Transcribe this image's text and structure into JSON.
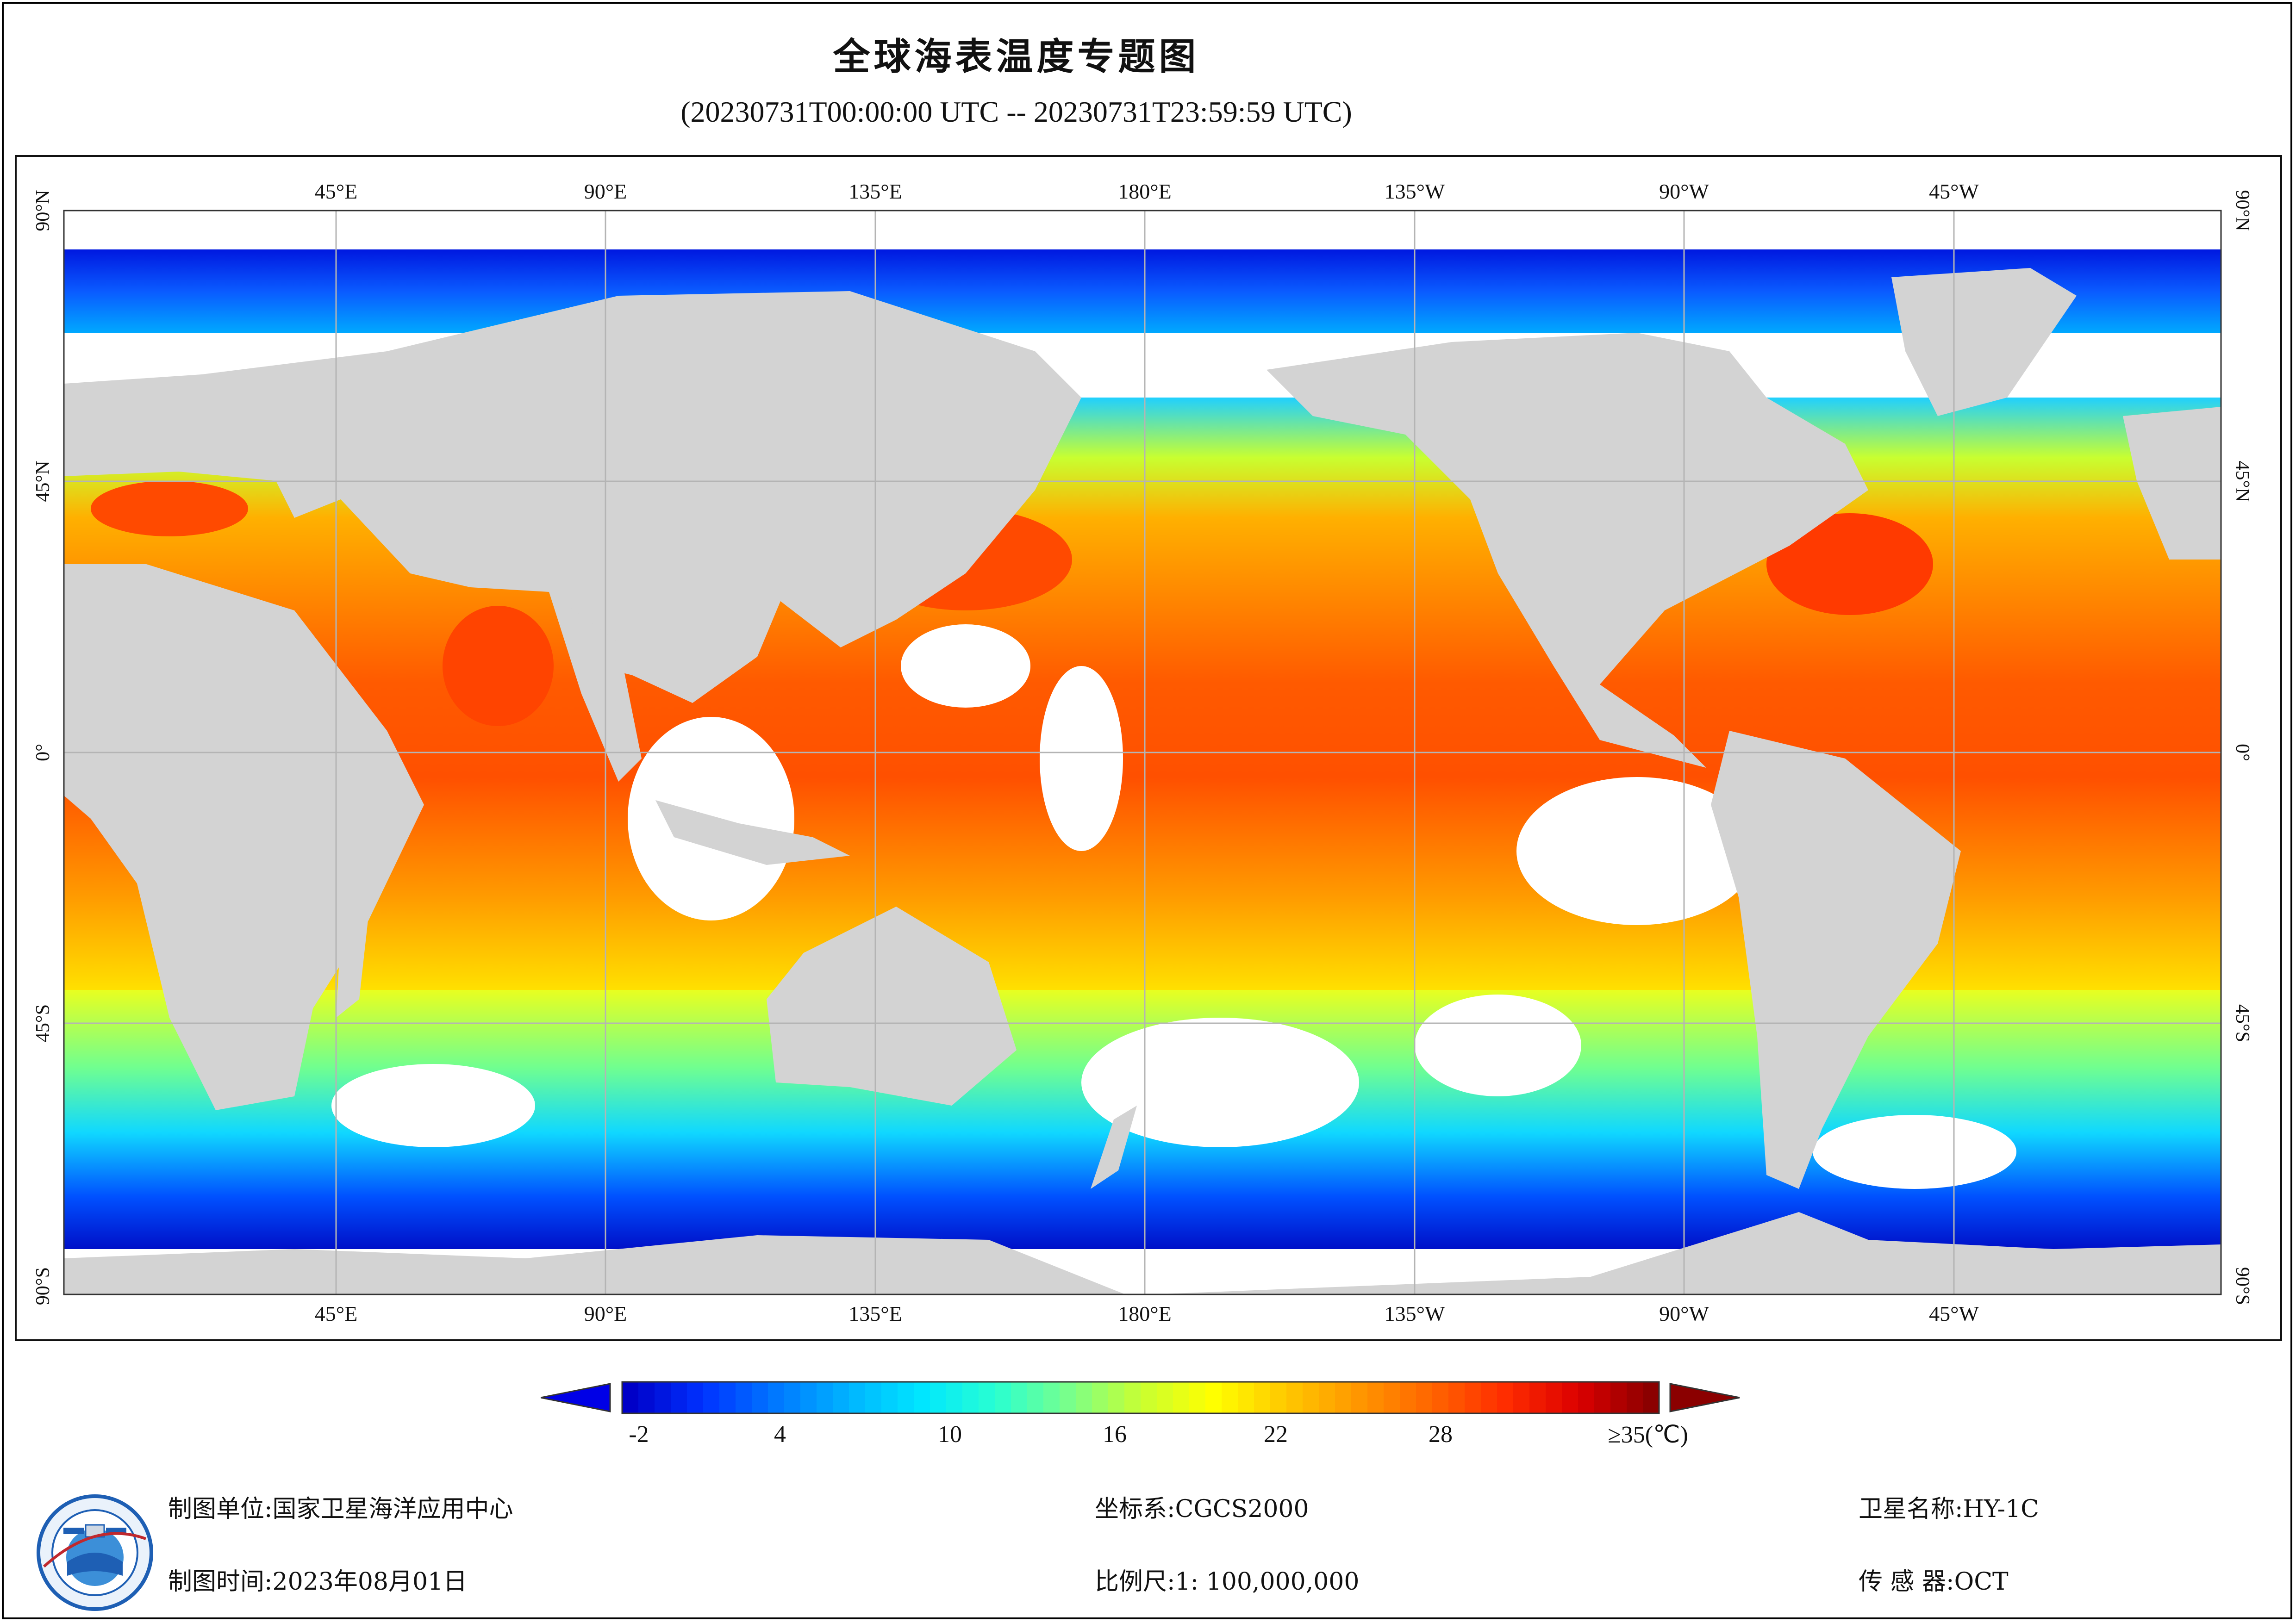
{
  "title": "全球海表温度专题图",
  "subtitle": "(20230731T00:00:00 UTC -- 20230731T23:59:59 UTC)",
  "map": {
    "type": "equirectangular world map, 0° centered on Pacific (180°E at center)",
    "lon_labels": [
      "45°E",
      "90°E",
      "135°E",
      "180°E",
      "135°W",
      "90°W",
      "45°W"
    ],
    "lat_labels_left": [
      "90°N",
      "45°N",
      "0°",
      "45°S",
      "90°S"
    ],
    "lat_labels_right": [
      "90°N",
      "45°N",
      "0°",
      "45°S",
      "90°S"
    ],
    "colors": {
      "land": "#d3d3d3",
      "no_data": "#ffffff",
      "grid": "#b4b4b4"
    }
  },
  "legend": {
    "unit": "≥35(℃)",
    "tick_labels": [
      "-2",
      "4",
      "10",
      "16",
      "22",
      "28"
    ],
    "range": [
      -2,
      35
    ],
    "colors_low_to_high": [
      "#0000c8",
      "#0032ff",
      "#0078ff",
      "#00b4ff",
      "#00e6ff",
      "#28ffd2",
      "#78ff8c",
      "#c8ff32",
      "#ffff00",
      "#ffc800",
      "#ff9600",
      "#ff6400",
      "#ff2d00",
      "#dc0000",
      "#8b0000"
    ]
  },
  "footer": {
    "org_label": "制图单位:",
    "org_value": "国家卫星海洋应用中心",
    "time_label": "制图时间:",
    "time_value": "2023年08月01日",
    "crs_label": "坐标系:",
    "crs_value": "CGCS2000",
    "scale_label": "比例尺:",
    "scale_value": "1: 100,000,000",
    "sat_label": "卫星名称:",
    "sat_value": "HY-1C",
    "sensor_label": "传 感 器:",
    "sensor_value": "OCT"
  }
}
